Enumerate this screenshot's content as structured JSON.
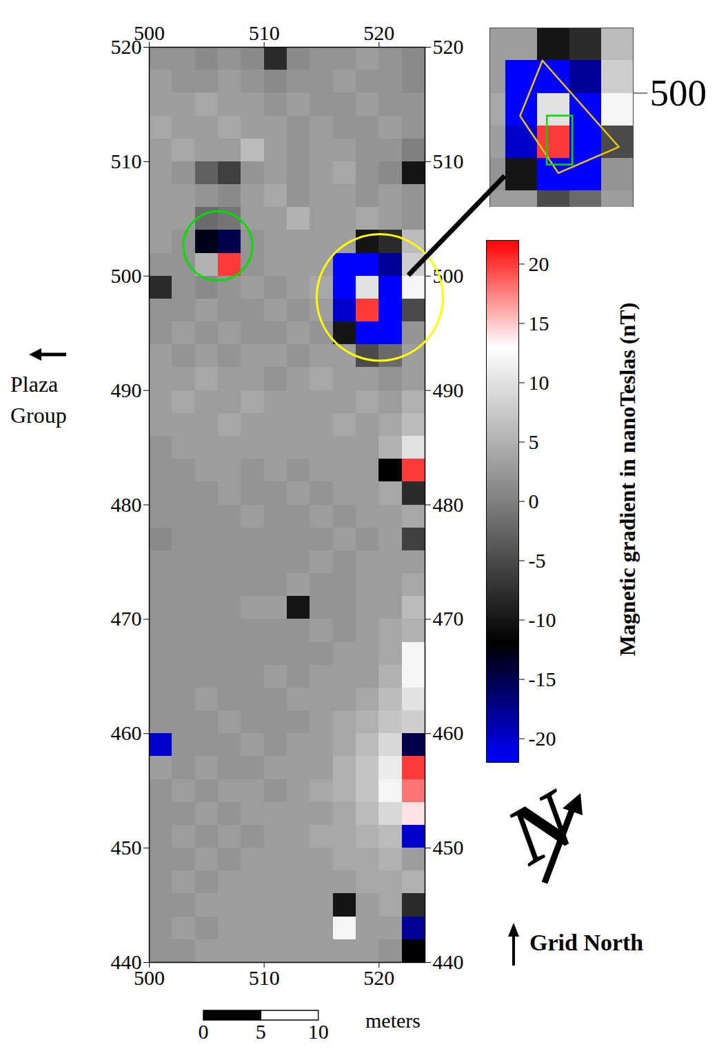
{
  "chart_data": {
    "type": "heatmap",
    "xlim": [
      500,
      524
    ],
    "xticks": [
      500,
      510,
      520
    ],
    "ylim": [
      440,
      520
    ],
    "yticks": [
      440,
      450,
      460,
      470,
      480,
      490,
      500,
      510,
      520
    ],
    "cell_size": 2,
    "x": [
      501,
      503,
      505,
      507,
      509,
      511,
      513,
      515,
      517,
      519,
      521,
      523
    ],
    "y": [
      519,
      517,
      515,
      513,
      511,
      509,
      507,
      505,
      503,
      501,
      499,
      497,
      495,
      493,
      491,
      489,
      487,
      485,
      483,
      481,
      479,
      477,
      475,
      473,
      471,
      469,
      467,
      465,
      463,
      461,
      459,
      457,
      455,
      453,
      451,
      449,
      447,
      445,
      443,
      441
    ],
    "values": [
      [
        2,
        2,
        1,
        2,
        1,
        -8,
        1,
        2,
        2,
        3,
        2,
        1
      ],
      [
        3,
        2,
        2,
        3,
        2,
        1,
        2,
        2,
        3,
        2,
        2,
        1
      ],
      [
        3,
        3,
        4,
        3,
        3,
        2,
        3,
        2,
        2,
        3,
        2,
        2
      ],
      [
        4,
        3,
        3,
        4,
        3,
        3,
        2,
        3,
        2,
        2,
        3,
        2
      ],
      [
        3,
        4,
        3,
        3,
        6,
        3,
        2,
        3,
        3,
        2,
        2,
        0
      ],
      [
        3,
        2,
        -3,
        -6,
        2,
        3,
        2,
        3,
        4,
        2,
        1,
        -10
      ],
      [
        3,
        3,
        2,
        1,
        3,
        4,
        2,
        3,
        3,
        2,
        3,
        2
      ],
      [
        3,
        3,
        -2,
        -1,
        3,
        3,
        5,
        3,
        3,
        4,
        3,
        2
      ],
      [
        3,
        2,
        -13,
        -15,
        2,
        3,
        3,
        3,
        3,
        -10,
        -8,
        6
      ],
      [
        2,
        2,
        5,
        20,
        2,
        3,
        3,
        3,
        -22,
        -22,
        -18,
        8
      ],
      [
        -8,
        2,
        1,
        2,
        3,
        2,
        3,
        4,
        -22,
        10,
        -22,
        12
      ],
      [
        2,
        2,
        3,
        2,
        2,
        3,
        2,
        3,
        -20,
        20,
        -22,
        -5
      ],
      [
        2,
        3,
        2,
        3,
        2,
        2,
        3,
        2,
        -10,
        -22,
        -22,
        2
      ],
      [
        3,
        2,
        3,
        2,
        3,
        3,
        2,
        3,
        3,
        -5,
        -2,
        3
      ],
      [
        3,
        3,
        4,
        3,
        3,
        2,
        3,
        4,
        3,
        3,
        2,
        3
      ],
      [
        3,
        4,
        3,
        3,
        4,
        3,
        3,
        3,
        3,
        4,
        3,
        5
      ],
      [
        3,
        3,
        3,
        4,
        3,
        3,
        3,
        3,
        4,
        3,
        4,
        6
      ],
      [
        2,
        3,
        3,
        3,
        3,
        3,
        3,
        3,
        3,
        3,
        5,
        10
      ],
      [
        2,
        2,
        3,
        3,
        2,
        3,
        2,
        3,
        3,
        3,
        -12,
        20
      ],
      [
        2,
        2,
        2,
        3,
        2,
        2,
        3,
        2,
        3,
        3,
        4,
        -8
      ],
      [
        2,
        2,
        2,
        2,
        3,
        2,
        2,
        3,
        2,
        3,
        3,
        4
      ],
      [
        1,
        2,
        2,
        2,
        2,
        2,
        2,
        2,
        3,
        2,
        3,
        -6
      ],
      [
        2,
        2,
        2,
        2,
        2,
        2,
        2,
        3,
        2,
        3,
        3,
        3
      ],
      [
        2,
        2,
        2,
        2,
        2,
        2,
        3,
        2,
        2,
        3,
        3,
        4
      ],
      [
        2,
        2,
        2,
        2,
        3,
        3,
        -10,
        2,
        2,
        3,
        3,
        6
      ],
      [
        2,
        2,
        2,
        2,
        2,
        2,
        2,
        3,
        2,
        3,
        4,
        5
      ],
      [
        2,
        2,
        2,
        2,
        2,
        2,
        2,
        2,
        3,
        3,
        4,
        12
      ],
      [
        2,
        2,
        2,
        2,
        2,
        3,
        2,
        3,
        3,
        3,
        5,
        12
      ],
      [
        2,
        2,
        3,
        2,
        2,
        2,
        3,
        3,
        3,
        4,
        6,
        10
      ],
      [
        2,
        2,
        2,
        3,
        2,
        2,
        2,
        3,
        4,
        5,
        7,
        8
      ],
      [
        -20,
        2,
        2,
        2,
        3,
        2,
        3,
        3,
        4,
        6,
        9,
        -15
      ],
      [
        3,
        2,
        3,
        2,
        2,
        3,
        3,
        3,
        5,
        7,
        11,
        20
      ],
      [
        2,
        3,
        2,
        3,
        3,
        2,
        3,
        4,
        5,
        7,
        12,
        18
      ],
      [
        2,
        2,
        3,
        2,
        3,
        3,
        3,
        3,
        4,
        6,
        9,
        14
      ],
      [
        2,
        3,
        2,
        3,
        2,
        3,
        3,
        4,
        4,
        5,
        6,
        -20
      ],
      [
        2,
        2,
        3,
        2,
        3,
        3,
        3,
        3,
        4,
        4,
        5,
        3
      ],
      [
        2,
        3,
        2,
        3,
        3,
        3,
        3,
        3,
        3,
        4,
        4,
        5
      ],
      [
        2,
        2,
        3,
        3,
        3,
        3,
        3,
        3,
        -10,
        3,
        4,
        -8
      ],
      [
        2,
        3,
        2,
        3,
        3,
        3,
        3,
        3,
        12,
        3,
        3,
        -18
      ],
      [
        2,
        2,
        3,
        3,
        3,
        3,
        3,
        3,
        3,
        3,
        2,
        -12
      ]
    ],
    "colorbar": {
      "title": "Magnetic gradient in nanoTeslas (nT)",
      "range": [
        -22,
        22
      ],
      "ticks": [
        -20,
        -15,
        -10,
        -5,
        0,
        5,
        10,
        15,
        20
      ],
      "stops": [
        {
          "value": -22,
          "color": "#0000ff"
        },
        {
          "value": -16,
          "color": "#000066"
        },
        {
          "value": -12,
          "color": "#000000"
        },
        {
          "value": 0,
          "color": "#808080"
        },
        {
          "value": 13,
          "color": "#ffffff"
        },
        {
          "value": 17,
          "color": "#ff9090"
        },
        {
          "value": 22,
          "color": "#ff0000"
        }
      ]
    },
    "circles": [
      {
        "x": 506,
        "y": 502.6,
        "r": 3,
        "color": "#00dd00"
      },
      {
        "x": 520.1,
        "y": 498.1,
        "r": 5.5,
        "color": "#ffff00"
      }
    ],
    "inset": {
      "xlim": [
        515,
        524
      ],
      "ylim": [
        493,
        504
      ],
      "yticks": [
        500
      ],
      "polygon": {
        "color": "#e6c619",
        "x": [
          518.3,
          523.1,
          519.3,
          516.9
        ],
        "y": [
          502,
          496.7,
          495.1,
          498.6
        ]
      },
      "box": {
        "color": "#00dd00",
        "x": [
          518.6,
          520.2
        ],
        "y": [
          495.6,
          498.6
        ]
      }
    },
    "scale_bar": {
      "ticks": [
        0,
        5,
        10
      ],
      "label": "meters"
    },
    "annotations": {
      "west": "Plaza Group",
      "north": "Grid North",
      "north_symbol": "N"
    }
  }
}
